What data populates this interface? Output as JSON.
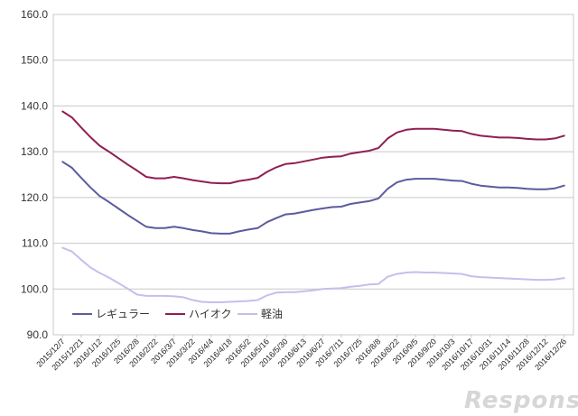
{
  "chart_data": {
    "type": "line",
    "title": "",
    "xlabel": "",
    "ylabel": "",
    "ylim": [
      90.0,
      160.0
    ],
    "yticks": [
      "90.0",
      "100.0",
      "110.0",
      "120.0",
      "130.0",
      "140.0",
      "150.0",
      "160.0"
    ],
    "grid": true,
    "legend_position": "bottom-left",
    "categories": [
      "2015/12/7",
      "2015/12/21",
      "2016/1/12",
      "2016/1/25",
      "2016/2/8",
      "2016/2/22",
      "2016/3/7",
      "2016/3/22",
      "2016/4/4",
      "2016/4/18",
      "2016/5/2",
      "2016/5/16",
      "2016/5/30",
      "2016/6/13",
      "2016/6/27",
      "2016/7/11",
      "2016/7/25",
      "2016/8/8",
      "2016/8/22",
      "2016/9/5",
      "2016/9/20",
      "2016/10/3",
      "2016/10/17",
      "2016/10/31",
      "2016/11/14",
      "2016/11/28",
      "2016/12/12",
      "2016/12/26"
    ],
    "x": [
      0,
      0.5,
      1,
      1.5,
      2,
      2.5,
      3,
      3.5,
      4,
      4.5,
      5,
      5.5,
      6,
      6.5,
      7,
      7.5,
      8,
      8.5,
      9,
      9.5,
      10,
      10.5,
      11,
      11.5,
      12,
      12.5,
      13,
      13.5,
      14,
      14.5,
      15,
      15.5,
      16,
      16.5,
      17,
      17.5,
      18,
      18.5,
      19,
      19.5,
      20,
      20.5,
      21,
      21.5,
      22,
      22.5,
      23,
      23.5,
      24,
      24.5,
      25,
      25.5,
      26,
      26.5,
      27
    ],
    "series": [
      {
        "name": "レギュラー",
        "color": "#5b5b9e",
        "values": [
          127.8,
          126.5,
          124.3,
          122.2,
          120.3,
          119.0,
          117.6,
          116.2,
          114.9,
          113.6,
          113.3,
          113.3,
          113.6,
          113.3,
          112.9,
          112.6,
          112.2,
          112.1,
          112.1,
          112.6,
          113.0,
          113.3,
          114.6,
          115.5,
          116.3,
          116.5,
          116.9,
          117.3,
          117.6,
          117.9,
          118.0,
          118.6,
          118.9,
          119.2,
          119.8,
          121.9,
          123.3,
          123.9,
          124.1,
          124.1,
          124.1,
          123.9,
          123.7,
          123.6,
          123.0,
          122.6,
          122.4,
          122.2,
          122.2,
          122.1,
          121.9,
          121.8,
          121.8,
          122.0,
          122.6
        ]
      },
      {
        "name": "ハイオク",
        "color": "#8f1f52",
        "values": [
          138.8,
          137.5,
          135.3,
          133.2,
          131.3,
          130.0,
          128.6,
          127.2,
          125.9,
          124.5,
          124.2,
          124.2,
          124.5,
          124.2,
          123.8,
          123.5,
          123.2,
          123.1,
          123.1,
          123.6,
          123.9,
          124.3,
          125.6,
          126.6,
          127.3,
          127.5,
          127.9,
          128.3,
          128.7,
          128.9,
          129.0,
          129.6,
          129.9,
          130.2,
          130.8,
          132.9,
          134.2,
          134.8,
          135.0,
          135.0,
          135.0,
          134.8,
          134.6,
          134.5,
          133.9,
          133.5,
          133.3,
          133.1,
          133.1,
          133.0,
          132.8,
          132.7,
          132.7,
          132.9,
          133.5
        ]
      },
      {
        "name": "軽油",
        "color": "#c2c0ec",
        "values": [
          109.0,
          108.2,
          106.4,
          104.7,
          103.5,
          102.5,
          101.3,
          100.1,
          98.8,
          98.5,
          98.5,
          98.5,
          98.4,
          98.2,
          97.6,
          97.2,
          97.1,
          97.1,
          97.2,
          97.3,
          97.4,
          97.6,
          98.6,
          99.2,
          99.3,
          99.3,
          99.5,
          99.7,
          100.0,
          100.1,
          100.2,
          100.5,
          100.7,
          101.0,
          101.1,
          102.7,
          103.3,
          103.6,
          103.7,
          103.6,
          103.6,
          103.5,
          103.4,
          103.3,
          102.8,
          102.6,
          102.5,
          102.4,
          102.3,
          102.2,
          102.1,
          102.0,
          102.0,
          102.1,
          102.4
        ]
      }
    ]
  },
  "watermark": "Response."
}
